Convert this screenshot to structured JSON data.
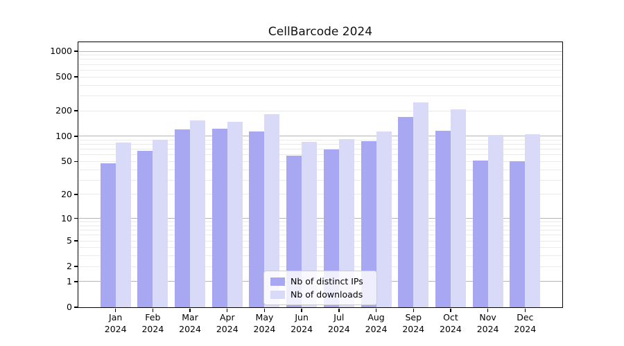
{
  "chart_data": {
    "type": "bar",
    "title": "CellBarcode 2024",
    "categories": [
      "Jan",
      "Feb",
      "Mar",
      "Apr",
      "May",
      "Jun",
      "Jul",
      "Aug",
      "Sep",
      "Oct",
      "Nov",
      "Dec"
    ],
    "x_year_label": "2024",
    "series": [
      {
        "name": "Nb of distinct IPs",
        "color": "#a8a8f2",
        "values": [
          48,
          67,
          120,
          122,
          114,
          59,
          70,
          87,
          170,
          115,
          51,
          50
        ]
      },
      {
        "name": "Nb of downloads",
        "color": "#d9d9f8",
        "values": [
          84,
          91,
          153,
          148,
          182,
          85,
          92,
          114,
          250,
          206,
          103,
          105
        ]
      }
    ],
    "y_ticks": [
      0,
      1,
      2,
      5,
      10,
      20,
      50,
      100,
      200,
      500,
      1000
    ],
    "y_scale": "log10(value+1)",
    "ylim": [
      0,
      1275
    ],
    "grid": "on",
    "grid_major_values": [
      1,
      10,
      100,
      1000
    ],
    "grid_major_color": "#b4b4b4",
    "grid_minor_color": "#e9e9e9",
    "legend_position": "lower-center",
    "legend": [
      "Nb of distinct IPs",
      "Nb of downloads"
    ]
  }
}
